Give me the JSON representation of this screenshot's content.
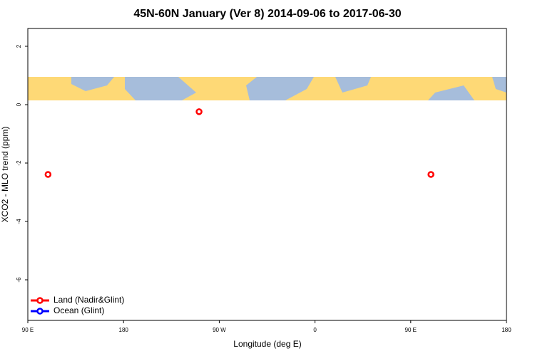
{
  "chart_data": {
    "type": "scatter",
    "title": "45N-60N January (Ver 8)   2014-09-06 to 2017-06-30",
    "x_label": "Longitude (deg E)",
    "y_label": "XCO2 - MLO trend (ppm)",
    "xlim": [
      90,
      540
    ],
    "xticks": [
      {
        "value": 90,
        "label": "90 E"
      },
      {
        "value": 180,
        "label": "180"
      },
      {
        "value": 270,
        "label": "90 W"
      },
      {
        "value": 360,
        "label": "0"
      },
      {
        "value": 450,
        "label": "90 E"
      },
      {
        "value": 540,
        "label": "180"
      }
    ],
    "ylim": [
      -7.39,
      2.61
    ],
    "yticks": [
      2,
      0,
      -2,
      -4,
      -6
    ],
    "legend": "bottom-left",
    "series": [
      {
        "name": "Land (Nadir&Glint)",
        "color": "#ff0000",
        "x": [
          109,
          251,
          469
        ],
        "values": [
          -2.39,
          -0.24,
          -2.39
        ]
      },
      {
        "name": "Ocean (Glint)",
        "color": "#0000ff",
        "x": [],
        "values": []
      }
    ]
  }
}
